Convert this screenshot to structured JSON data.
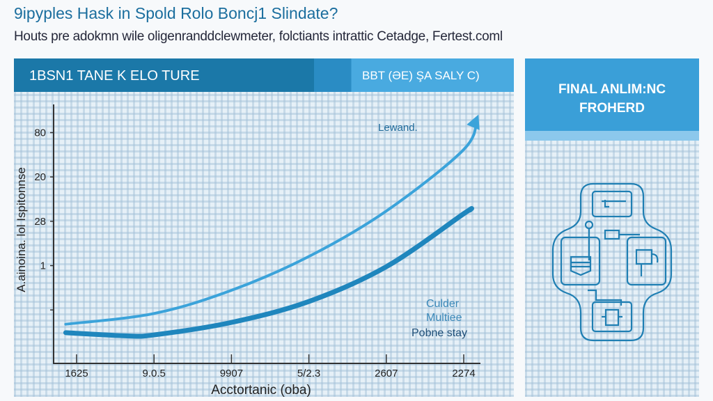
{
  "header": {
    "title": "9ipyples Hask in Spold Rolo Boncj1 Slindate?",
    "subtitle": "Houts pre adokmn wile oligenranddclewmeter, folctiants intrattic Cetadge, Fertest.coml"
  },
  "left_panel": {
    "title": "1BSN1 TANE K ELO TURE",
    "right_label": "BBT (ƏE) ŞA SALY C)"
  },
  "right_panel": {
    "title_line1": "FINAL ANLIM:NC",
    "title_line2": "FROHERD",
    "diagram_icon": "workflow-cycle-diagram"
  },
  "colors": {
    "primary": "#1b78a8",
    "accent": "#3a9fd8",
    "curve_light": "#3ba3da",
    "curve_dark": "#1f86bd"
  },
  "chart_data": {
    "type": "line",
    "xlabel": "Acctortanic (oba)",
    "ylabel": "A.ainoina. lol  Ispitonnse",
    "x_tick_labels": [
      "1625",
      "9.0.5",
      "9907",
      "5/2.3",
      "2607",
      "2274"
    ],
    "y_tick_labels": [
      "",
      "1",
      "28",
      "20",
      "80"
    ],
    "note": "x values are tick-index units (0..5); y values are tick-index units (0 = x-axis, 1..5 = ticks bottom to top)",
    "series": [
      {
        "name": "Lewand.",
        "color": "#3ba3da",
        "arrow": true,
        "x": [
          -0.14,
          1,
          2,
          3,
          4,
          5,
          5.17
        ],
        "y": [
          0.88,
          1.12,
          1.64,
          2.4,
          3.42,
          4.8,
          5.5
        ]
      },
      {
        "name": "Pobne stay",
        "color": "#1f86bd",
        "arrow": false,
        "x": [
          -0.14,
          0.63,
          1,
          2,
          3,
          4,
          5,
          5.08
        ],
        "y": [
          0.69,
          0.62,
          0.64,
          0.92,
          1.39,
          2.17,
          3.36,
          3.44
        ]
      }
    ],
    "annotations": [
      "Lewand.",
      "Culder",
      "Multiee",
      "Pobne stay"
    ],
    "grid": true
  }
}
